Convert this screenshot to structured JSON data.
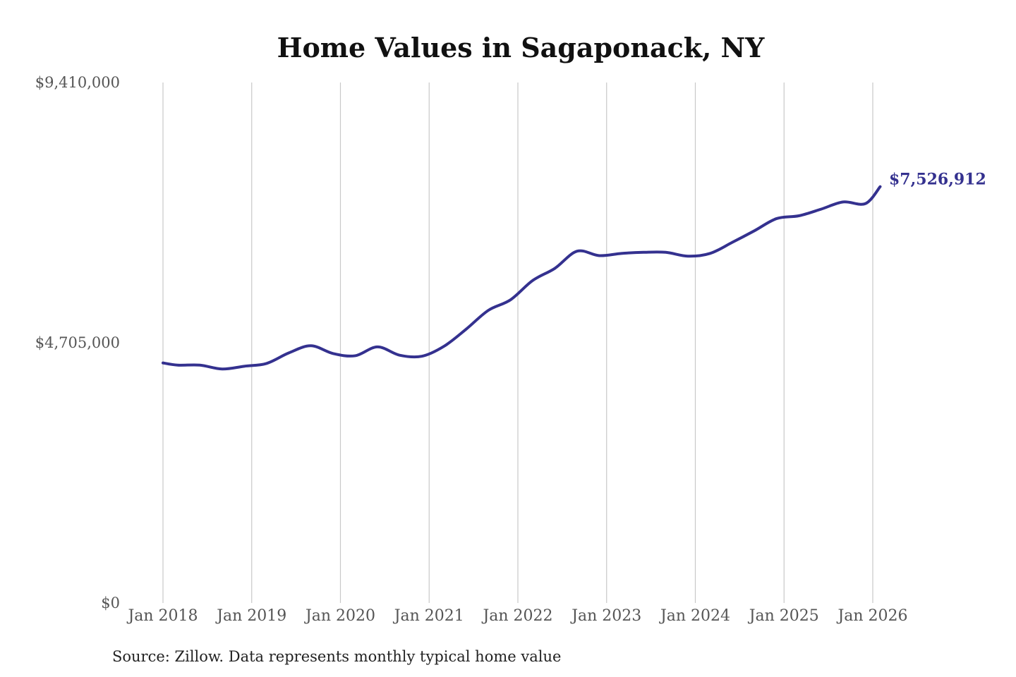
{
  "chart_data": {
    "type": "line",
    "title": "Home Values in Sagaponack, NY",
    "source": "Source: Zillow. Data represents monthly typical home value",
    "ylim": [
      0,
      9410000
    ],
    "y_ticks": [
      {
        "value": 9410000,
        "label": "$9,410,000"
      },
      {
        "value": 4705000,
        "label": "$4,705,000"
      },
      {
        "value": 0,
        "label": "$0"
      }
    ],
    "x_ticks": [
      "Jan 2018",
      "Jan 2019",
      "Jan 2020",
      "Jan 2021",
      "Jan 2022",
      "Jan 2023",
      "Jan 2024",
      "Jan 2025",
      "Jan 2026"
    ],
    "grid": "vertical",
    "legend": "none",
    "colors": {
      "line": "#34318f",
      "grid": "#c8c8c8",
      "background": "#ffffff"
    },
    "last_value_label": "$7,526,912",
    "series": [
      {
        "x": [
          "2018-01",
          "2018-03",
          "2018-06",
          "2018-09",
          "2018-12",
          "2019-03",
          "2019-06",
          "2019-09",
          "2019-12",
          "2020-03",
          "2020-06",
          "2020-09",
          "2020-12",
          "2021-03",
          "2021-06",
          "2021-09",
          "2021-12",
          "2022-03",
          "2022-06",
          "2022-09",
          "2022-12",
          "2023-03",
          "2023-06",
          "2023-09",
          "2023-12",
          "2024-03",
          "2024-06",
          "2024-09",
          "2024-12",
          "2025-03",
          "2025-06",
          "2025-09",
          "2025-12",
          "2026-02"
        ],
        "values": [
          4340000,
          4300000,
          4300000,
          4230000,
          4280000,
          4330000,
          4520000,
          4650000,
          4510000,
          4470000,
          4630000,
          4480000,
          4460000,
          4640000,
          4950000,
          5290000,
          5480000,
          5830000,
          6050000,
          6360000,
          6280000,
          6320000,
          6340000,
          6340000,
          6270000,
          6320000,
          6520000,
          6730000,
          6950000,
          7000000,
          7120000,
          7250000,
          7220000,
          7526912
        ]
      }
    ]
  }
}
